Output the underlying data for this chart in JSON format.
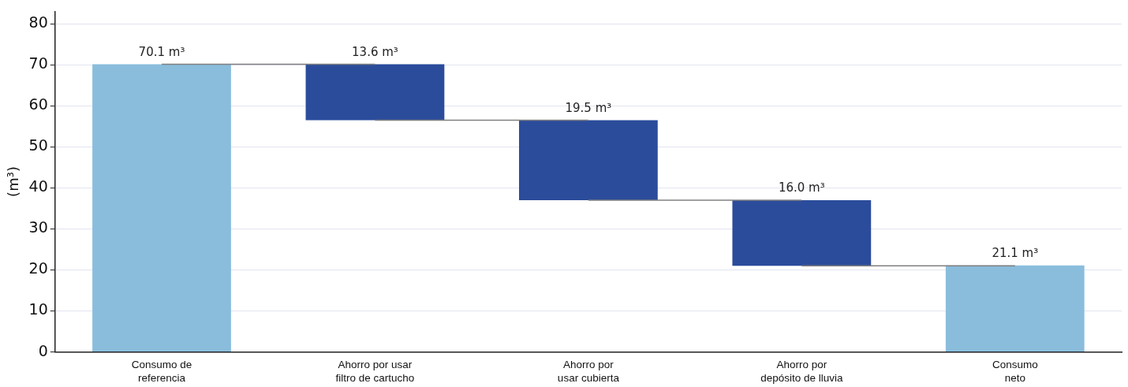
{
  "chart_data": {
    "type": "bar",
    "ylabel": "(m³)",
    "categories": [
      "Consumo de referencia",
      "Ahorro por usar filtro de cartucho",
      "Ahorro por usar cubierta",
      "Ahorro por depósito de lluvia",
      "Consumo neto"
    ],
    "values": [
      70.1,
      13.6,
      19.5,
      16.0,
      21.1
    ],
    "base": [
      0,
      56.5,
      37.0,
      21.0,
      0
    ],
    "colors": [
      "#8abddc",
      "#2b4c9b",
      "#2b4c9b",
      "#2b4c9b",
      "#8abddc"
    ],
    "value_labels": [
      "70.1 m³",
      "13.6 m³",
      "19.5 m³",
      "16.0 m³",
      "21.1 m³"
    ],
    "series": [
      {
        "type": "line",
        "color": "#808080",
        "values": [
          70.1,
          70.1,
          null,
          null,
          null
        ]
      },
      {
        "type": "line",
        "color": "#808080",
        "values": [
          null,
          56.5,
          56.5,
          null,
          null
        ]
      },
      {
        "type": "line",
        "color": "#808080",
        "values": [
          null,
          null,
          37.0,
          37.0,
          null
        ]
      },
      {
        "type": "line",
        "color": "#808080",
        "values": [
          null,
          null,
          null,
          21.0,
          21.0
        ]
      }
    ],
    "marker": "none",
    "ylim": [
      0,
      83
    ],
    "yticks": [
      0,
      10,
      20,
      30,
      40,
      50,
      60,
      70,
      80
    ],
    "grid": "y",
    "legend": false
  }
}
